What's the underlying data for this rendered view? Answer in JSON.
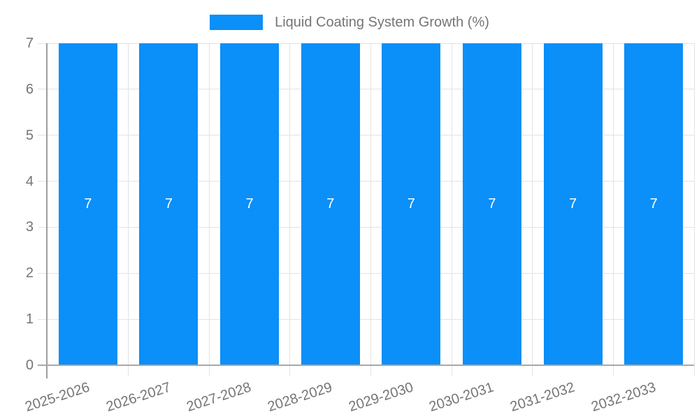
{
  "chart_data": {
    "type": "bar",
    "title": "Liquid Coating System Growth (%)",
    "categories": [
      "2025-2026",
      "2026-2027",
      "2027-2028",
      "2028-2029",
      "2029-2030",
      "2030-2031",
      "2031-2032",
      "2032-2033"
    ],
    "series": [
      {
        "name": "Liquid Coating System Growth (%)",
        "values": [
          7,
          7,
          7,
          7,
          7,
          7,
          7,
          7
        ]
      }
    ],
    "data_labels": [
      "7",
      "7",
      "7",
      "7",
      "7",
      "7",
      "7",
      "7"
    ],
    "xlabel": "",
    "ylabel": "",
    "ylim": [
      0,
      7
    ],
    "yticks": [
      "0",
      "1",
      "2",
      "3",
      "4",
      "5",
      "6",
      "7"
    ],
    "grid": true,
    "legend_position": "top-center",
    "colors": {
      "bar": "#0b8ff8",
      "data_label": "#ffffff",
      "axis_text": "#757575",
      "grid_line": "#e3e3e3",
      "axis_line": "#a8a8a8"
    }
  }
}
